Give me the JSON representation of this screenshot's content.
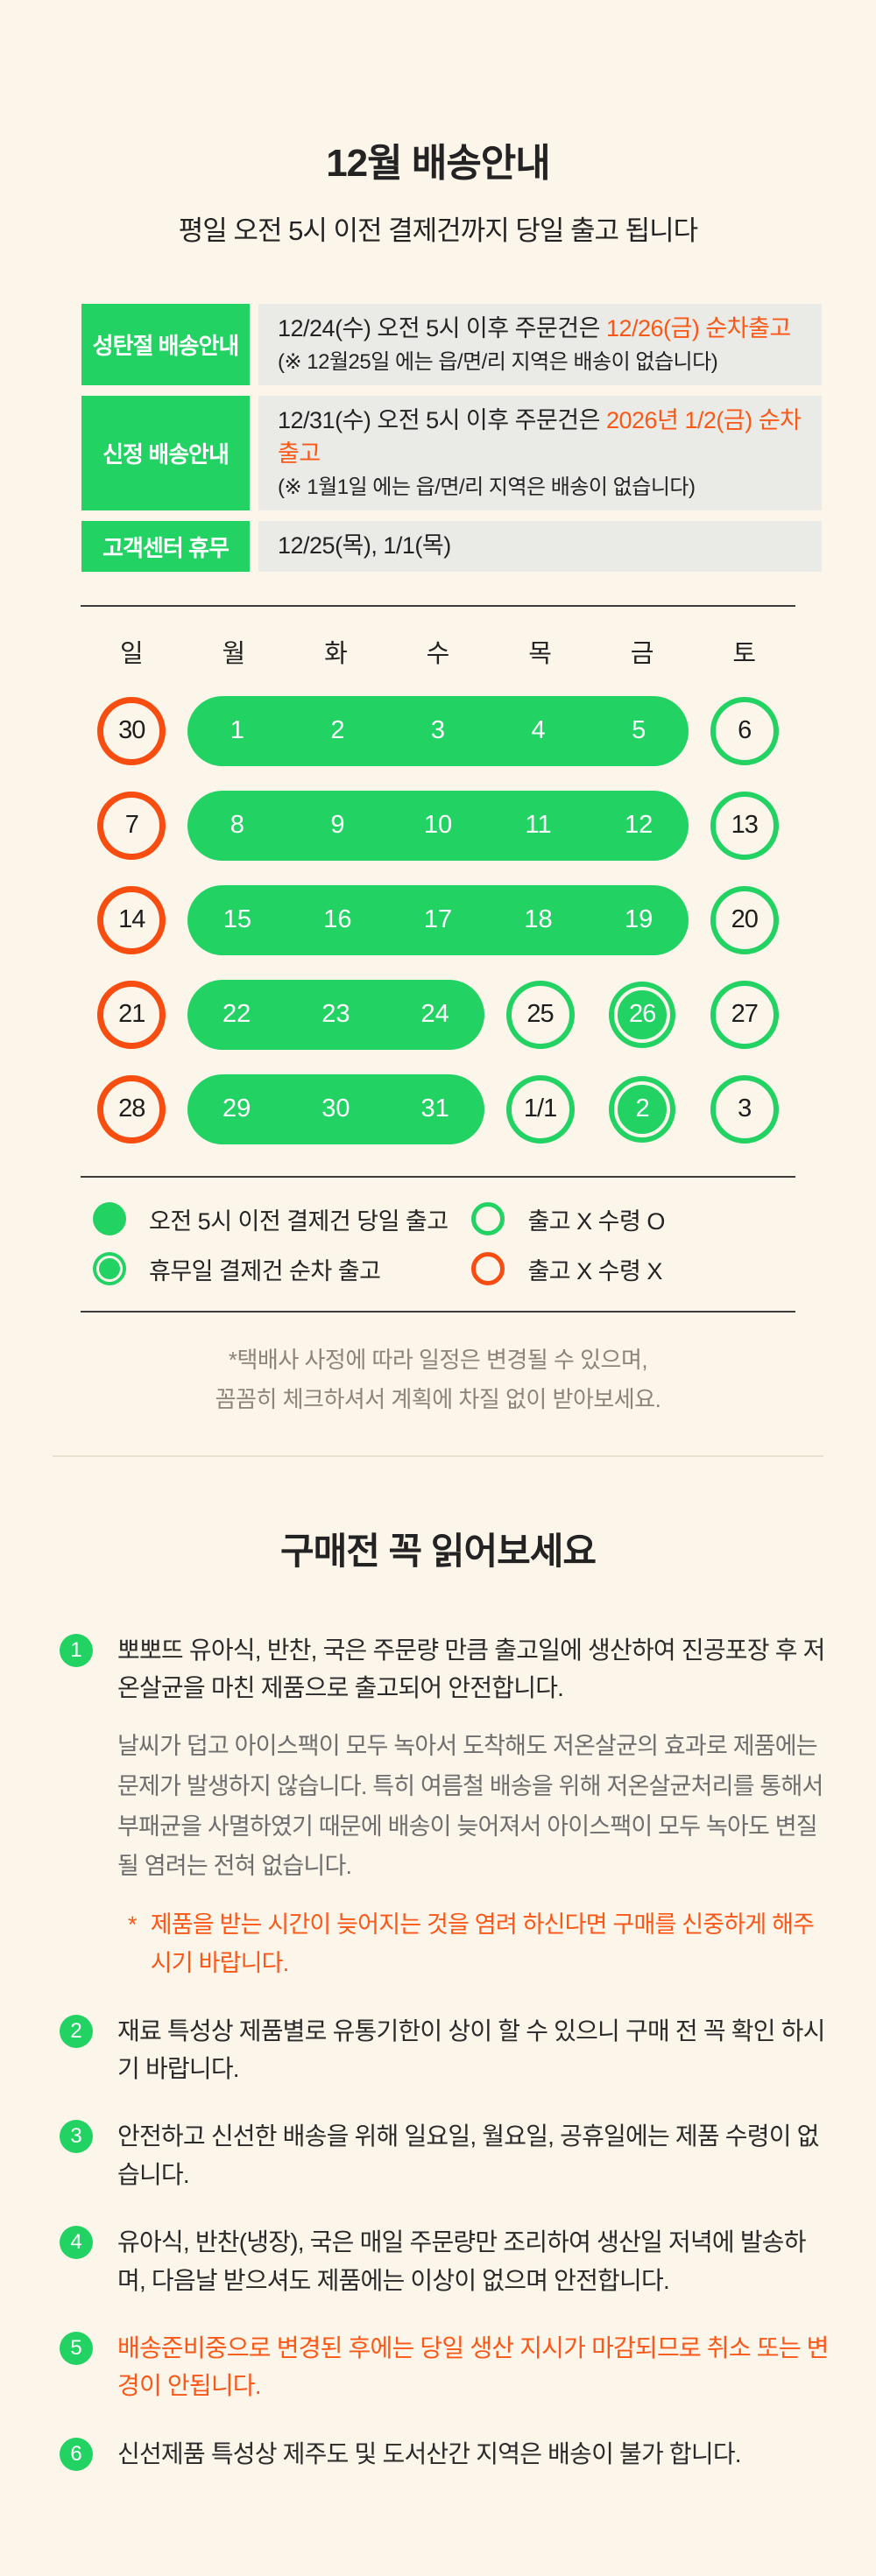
{
  "page": {
    "title": "12월 배송안내",
    "subtitle": "평일 오전 5시 이전 결제건까지 당일 출고 됩니다"
  },
  "colors": {
    "background": "#fbf5ea",
    "green": "#22d263",
    "orange": "#f84d10",
    "orange_text": "#fb5716",
    "notice_box_bg": "#eaeae7",
    "text": "#232323",
    "muted": "#6e6e6e",
    "footnote": "#8b8478"
  },
  "notices": [
    {
      "label": "성탄절 배송안내",
      "line1_prefix": "12/24(수) 오전 5시 이후 주문건은 ",
      "line1_highlight": "12/26(금) 순차출고",
      "line2": "(※ 12월25일 에는 읍/면/리 지역은 배송이 없습니다)"
    },
    {
      "label": "신정 배송안내",
      "line1_prefix": "12/31(수) 오전 5시 이후 주문건은 ",
      "line1_highlight": "2026년 1/2(금) 순차출고",
      "line2": "(※ 1월1일 에는 읍/면/리 지역은 배송이 없습니다)"
    },
    {
      "label": "고객센터 휴무",
      "line1_prefix": "12/25(목), 1/1(목)",
      "line1_highlight": "",
      "line2": ""
    }
  ],
  "calendar": {
    "day_headers": [
      "일",
      "월",
      "화",
      "수",
      "목",
      "금",
      "토"
    ],
    "weeks": [
      {
        "cells": [
          {
            "type": "holiday",
            "label": "30"
          },
          {
            "type": "pill",
            "span": 5,
            "labels": [
              "1",
              "2",
              "3",
              "4",
              "5"
            ]
          },
          {
            "type": "open",
            "label": "6"
          }
        ]
      },
      {
        "cells": [
          {
            "type": "holiday",
            "label": "7"
          },
          {
            "type": "pill",
            "span": 5,
            "labels": [
              "8",
              "9",
              "10",
              "11",
              "12"
            ]
          },
          {
            "type": "open",
            "label": "13"
          }
        ]
      },
      {
        "cells": [
          {
            "type": "holiday",
            "label": "14"
          },
          {
            "type": "pill",
            "span": 5,
            "labels": [
              "15",
              "16",
              "17",
              "18",
              "19"
            ]
          },
          {
            "type": "open",
            "label": "20"
          }
        ]
      },
      {
        "cells": [
          {
            "type": "holiday",
            "label": "21"
          },
          {
            "type": "pill",
            "span": 3,
            "labels": [
              "22",
              "23",
              "24"
            ]
          },
          {
            "type": "open",
            "label": "25"
          },
          {
            "type": "sequential",
            "label": "26"
          },
          {
            "type": "open",
            "label": "27"
          }
        ]
      },
      {
        "cells": [
          {
            "type": "holiday",
            "label": "28"
          },
          {
            "type": "pill",
            "span": 3,
            "labels": [
              "29",
              "30",
              "31"
            ]
          },
          {
            "type": "open",
            "label": "1/1"
          },
          {
            "type": "sequential",
            "label": "2"
          },
          {
            "type": "open",
            "label": "3"
          }
        ]
      }
    ]
  },
  "legend": {
    "items": [
      {
        "marker": "filled",
        "label": "오전 5시 이전 결제건 당일 출고"
      },
      {
        "marker": "open",
        "label": "출고 X 수령 O"
      },
      {
        "marker": "sequential",
        "label": "휴무일 결제건 순차 출고"
      },
      {
        "marker": "holiday",
        "label": "출고 X 수령 X"
      }
    ]
  },
  "footnote": {
    "line1": "*택배사 사정에 따라 일정은 변경될 수 있으며,",
    "line2": "꼼꼼히 체크하셔서 계획에 차질 없이 받아보세요."
  },
  "read_before": {
    "heading": "구매전 꼭 읽어보세요",
    "items": [
      {
        "number": "1",
        "text": "뽀뽀뜨 유아식, 반찬, 국은 주문량 만큼 출고일에 생산하여 진공포장 후 저온살균을 마친 제품으로 출고되어 안전합니다.",
        "subtext": "날씨가 덥고 아이스팩이 모두 녹아서 도착해도 저온살균의 효과로 제품에는 문제가 발생하지 않습니다. 특히 여름철 배송을 위해 저온살균처리를 통해서 부패균을 사멸하였기 때문에 배송이 늦어져서 아이스팩이 모두 녹아도 변질될 염려는 전혀 없습니다.",
        "warning_star": "*",
        "warning": "제품을 받는 시간이 늦어지는 것을 염려 하신다면 구매를 신중하게 해주시기 바랍니다."
      },
      {
        "number": "2",
        "text": "재료 특성상 제품별로 유통기한이 상이 할 수 있으니 구매 전 꼭 확인 하시기 바랍니다."
      },
      {
        "number": "3",
        "text": "안전하고 신선한 배송을 위해 일요일, 월요일, 공휴일에는 제품 수령이 없습니다."
      },
      {
        "number": "4",
        "text": "유아식, 반찬(냉장), 국은 매일 주문량만 조리하여 생산일 저녁에 발송하며, 다음날 받으셔도 제품에는 이상이 없으며 안전합니다."
      },
      {
        "number": "5",
        "text": "배송준비중으로 변경된 후에는 당일 생산 지시가 마감되므로 취소 또는 변경이 안됩니다.",
        "highlight": true
      },
      {
        "number": "6",
        "text": "신선제품 특성상 제주도 및 도서산간 지역은 배송이 불가 합니다."
      }
    ]
  }
}
